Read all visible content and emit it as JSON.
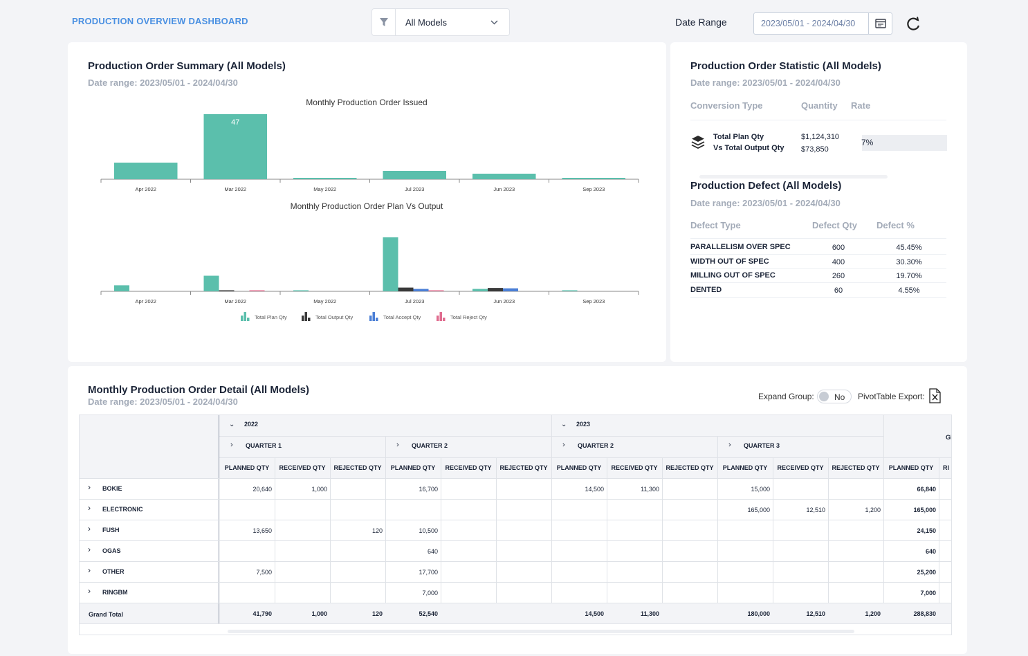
{
  "header": {
    "title": "PRODUCTION OVERVIEW DASHBOARD",
    "model_filter": "All Models",
    "date_range_label": "Date Range",
    "date_range_value": "2023/05/01 - 2024/04/30"
  },
  "summary": {
    "title": "Production Order Summary (All Models)",
    "subtitle": "Date range: 2023/05/01 - 2024/04/30"
  },
  "chart_data": [
    {
      "type": "bar",
      "title": "Monthly Production Order Issued",
      "categories": [
        "Apr 2022",
        "Mar 2022",
        "May 2022",
        "Jul 2023",
        "Jun 2023",
        "Sep 2023"
      ],
      "values": [
        12,
        47,
        1,
        6,
        4,
        1
      ],
      "data_labels": [
        "",
        "47",
        "",
        "",
        "",
        ""
      ],
      "color": "#5bbfac"
    },
    {
      "type": "bar",
      "title": "Monthly Production Order Plan Vs Output",
      "categories": [
        "Apr 2022",
        "Mar 2022",
        "May 2022",
        "Jul 2023",
        "Jun 2023",
        "Sep 2023"
      ],
      "series": [
        {
          "name": "Total Plan Qty",
          "color": "#5bbfac",
          "values": [
            20000,
            52000,
            500,
            180000,
            8000,
            1000
          ]
        },
        {
          "name": "Total Output Qty",
          "color": "#3a3a3a",
          "values": [
            0,
            1000,
            0,
            12510,
            11300,
            0
          ]
        },
        {
          "name": "Total Accept Qty",
          "color": "#4b7fd6",
          "values": [
            0,
            0,
            0,
            8000,
            10000,
            0
          ]
        },
        {
          "name": "Total Reject Qty",
          "color": "#e06c8f",
          "values": [
            0,
            120,
            0,
            1200,
            0,
            0
          ]
        }
      ]
    }
  ],
  "statistic": {
    "title": "Production Order Statistic (All Models)",
    "subtitle": "Date range: 2023/05/01 - 2024/04/30",
    "headers": [
      "Conversion Type",
      "Quantity",
      "Rate"
    ],
    "row_label_1": "Total Plan Qty",
    "row_label_2": "Vs Total Output Qty",
    "plan_qty": "$1,124,310",
    "output_qty": "$73,850",
    "rate": "7%",
    "rate_value": 0.07
  },
  "defect": {
    "title": "Production Defect (All Models)",
    "subtitle": "Date range: 2023/05/01 - 2024/04/30",
    "headers": [
      "Defect Type",
      "Defect Qty",
      "Defect %"
    ],
    "rows": [
      {
        "type": "PARALLELISM OVER SPEC",
        "qty": "600",
        "pct": "45.45%"
      },
      {
        "type": "WIDTH OUT OF SPEC",
        "qty": "400",
        "pct": "30.30%"
      },
      {
        "type": "MILLING OUT OF SPEC",
        "qty": "260",
        "pct": "19.70%"
      },
      {
        "type": "DENTED",
        "qty": "60",
        "pct": "4.55%"
      }
    ]
  },
  "detail": {
    "title": "Monthly Production Order Detail (All Models)",
    "subtitle": "Date range: 2023/05/01 - 2024/04/30",
    "expand_label": "Expand Group:",
    "expand_value": "No",
    "export_label": "PivotTable Export:",
    "years": [
      "2022",
      "2023"
    ],
    "quarters": [
      "QUARTER 1",
      "QUARTER 2",
      "QUARTER 2",
      "QUARTER 3"
    ],
    "grand_header": "GI",
    "col_headers": [
      "PLANNED QTY",
      "RECEIVED QTY",
      "REJECTED QTY"
    ],
    "cut_header": "RI",
    "rows": [
      {
        "name": "BOKIE",
        "cells": [
          "20,640",
          "1,000",
          "",
          "16,700",
          "",
          "",
          "14,500",
          "11,300",
          "",
          "15,000",
          "",
          "",
          "66,840"
        ]
      },
      {
        "name": "ELECTRONIC",
        "cells": [
          "",
          "",
          "",
          "",
          "",
          "",
          "",
          "",
          "",
          "165,000",
          "12,510",
          "1,200",
          "165,000"
        ]
      },
      {
        "name": "FUSH",
        "cells": [
          "13,650",
          "",
          "120",
          "10,500",
          "",
          "",
          "",
          "",
          "",
          "",
          "",
          "",
          "24,150"
        ]
      },
      {
        "name": "OGAS",
        "cells": [
          "",
          "",
          "",
          "640",
          "",
          "",
          "",
          "",
          "",
          "",
          "",
          "",
          "640"
        ]
      },
      {
        "name": "OTHER",
        "cells": [
          "7,500",
          "",
          "",
          "17,700",
          "",
          "",
          "",
          "",
          "",
          "",
          "",
          "",
          "25,200"
        ]
      },
      {
        "name": "RINGBM",
        "cells": [
          "",
          "",
          "",
          "7,000",
          "",
          "",
          "",
          "",
          "",
          "",
          "",
          "",
          "7,000"
        ]
      }
    ],
    "grand_total": {
      "name": "Grand Total",
      "cells": [
        "41,790",
        "1,000",
        "120",
        "52,540",
        "",
        "",
        "14,500",
        "11,300",
        "",
        "180,000",
        "12,510",
        "1,200",
        "288,830"
      ]
    }
  }
}
